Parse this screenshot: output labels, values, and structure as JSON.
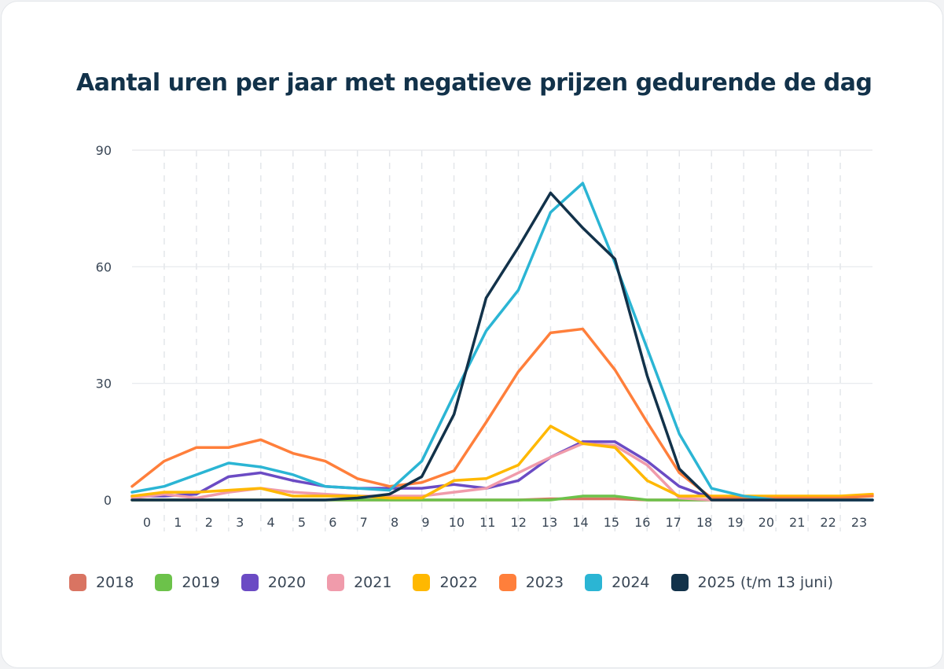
{
  "chart_data": {
    "type": "line",
    "title": "Aantal uren per jaar met negatieve prijzen gedurende de dag",
    "xlabel": "",
    "ylabel": "",
    "categories": [
      "0",
      "1",
      "2",
      "3",
      "4",
      "5",
      "6",
      "7",
      "8",
      "9",
      "10",
      "11",
      "12",
      "13",
      "14",
      "15",
      "16",
      "17",
      "18",
      "19",
      "20",
      "21",
      "22",
      "23"
    ],
    "ylim": [
      0,
      90
    ],
    "yticks": [
      "0",
      "30",
      "60",
      "90"
    ],
    "grid": true,
    "legend_position": "bottom",
    "series": [
      {
        "name": "2018",
        "color": "#d97462",
        "values": [
          0,
          0,
          0,
          0,
          0,
          0,
          0,
          0,
          0,
          0,
          0,
          0,
          0,
          0.3,
          0.3,
          0.3,
          0,
          0,
          0,
          0,
          0,
          0,
          0,
          0
        ]
      },
      {
        "name": "2019",
        "color": "#6cc24a",
        "values": [
          0,
          0,
          0,
          0,
          0,
          0,
          0,
          0,
          0,
          0,
          0,
          0,
          0,
          0,
          1,
          1,
          0,
          0,
          0,
          0,
          0,
          0,
          0,
          0
        ]
      },
      {
        "name": "2020",
        "color": "#6b4bc4",
        "values": [
          1,
          1,
          1.5,
          6,
          7,
          5,
          3.5,
          3,
          3,
          3,
          4,
          3,
          5,
          11,
          15,
          15,
          10,
          3.5,
          0.5,
          0,
          0,
          0,
          0,
          0
        ]
      },
      {
        "name": "2021",
        "color": "#f09bab",
        "values": [
          0.5,
          1.5,
          0.5,
          2,
          3,
          2,
          1.5,
          1,
          1,
          1,
          2,
          3,
          7,
          11,
          14.5,
          14,
          9,
          0.5,
          0,
          0,
          0,
          0,
          0,
          0
        ]
      },
      {
        "name": "2022",
        "color": "#ffb800",
        "values": [
          1,
          2,
          2,
          2.5,
          3,
          1,
          1,
          1,
          0.5,
          0.5,
          5,
          5.5,
          9,
          19,
          14.5,
          13.5,
          5,
          1,
          1,
          1,
          1,
          1,
          1,
          1.5
        ]
      },
      {
        "name": "2023",
        "color": "#ff7f3b",
        "values": [
          3.5,
          10,
          13.5,
          13.5,
          15.5,
          12,
          10,
          5.5,
          3.5,
          4.5,
          7.5,
          20,
          33,
          43,
          44,
          33.5,
          20,
          7,
          0.5,
          0.5,
          0.5,
          0.5,
          0.5,
          1
        ]
      },
      {
        "name": "2024",
        "color": "#2bb5d4",
        "values": [
          2,
          3.5,
          6.5,
          9.5,
          8.5,
          6.5,
          3.5,
          3,
          2.5,
          10,
          27,
          43.5,
          54,
          74,
          81.5,
          61,
          39,
          17,
          3,
          1,
          0,
          0,
          0,
          0
        ]
      },
      {
        "name": "2025 (t/m 13 juni)",
        "color": "#12324a",
        "values": [
          0,
          0,
          0,
          0,
          0,
          0,
          0,
          0.5,
          1.5,
          6,
          22,
          52,
          65,
          79,
          70,
          62,
          32,
          8,
          0,
          0,
          0,
          0,
          0,
          0
        ]
      }
    ]
  }
}
